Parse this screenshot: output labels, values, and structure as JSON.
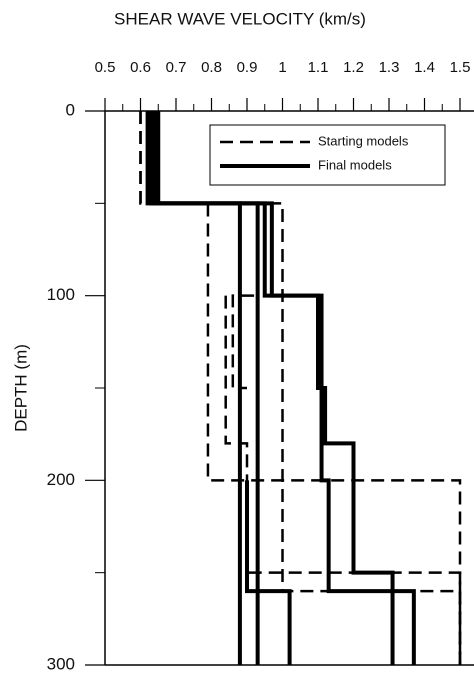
{
  "chart_data": {
    "type": "step-profile",
    "xlabel": "SHEAR WAVE VELOCITY (km/s)",
    "ylabel": "DEPTH (m)",
    "xlim": [
      0.5,
      1.5
    ],
    "xticks": [
      0.5,
      0.6,
      0.7,
      0.8,
      0.9,
      1,
      1.1,
      1.2,
      1.3,
      1.4,
      1.5
    ],
    "ylim": [
      0,
      300
    ],
    "yticks": [
      0,
      100,
      200,
      300
    ],
    "yticks_minor": [
      50,
      150,
      250
    ],
    "y_inverted": true,
    "x_axis_top": true,
    "legend": "upper right",
    "series": [
      {
        "name": "Starting models",
        "style": "dashed",
        "color": "#000000",
        "x": [
          0.6,
          0.6,
          1.0,
          1.0,
          1.5,
          1.5
        ],
        "y": [
          0,
          50,
          50,
          260,
          260,
          300
        ]
      },
      {
        "style": "dashed",
        "color": "#000000",
        "x": [
          0.6,
          0.6,
          0.79,
          0.79,
          1.5,
          1.5
        ],
        "y": [
          0,
          50,
          50,
          200,
          200,
          300
        ]
      },
      {
        "style": "dashed",
        "color": "#000000",
        "x": [
          0.84,
          0.84,
          0.9,
          0.9,
          1.5,
          1.5
        ],
        "y": [
          100,
          180,
          180,
          250,
          250,
          300
        ]
      },
      {
        "style": "dashed",
        "color": "#000000",
        "x": [
          0.92,
          0.86,
          0.86,
          0.9
        ],
        "y": [
          100,
          100,
          150,
          150
        ]
      },
      {
        "name": "Final models",
        "style": "solid",
        "color": "#000000",
        "x": [
          0.63,
          0.63,
          0.88,
          0.88
        ],
        "y": [
          0,
          50,
          50,
          300
        ]
      },
      {
        "style": "solid",
        "color": "#000000",
        "x": [
          0.64,
          0.64,
          0.93,
          0.93
        ],
        "y": [
          0,
          50,
          50,
          300
        ]
      },
      {
        "style": "solid",
        "color": "#000000",
        "x": [
          0.65,
          0.65,
          0.97,
          0.97,
          1.1,
          1.1,
          1.12,
          1.12,
          1.2,
          1.2,
          1.31,
          1.31
        ],
        "y": [
          0,
          50,
          50,
          100,
          100,
          150,
          150,
          180,
          180,
          250,
          250,
          300
        ]
      },
      {
        "style": "solid",
        "color": "#000000",
        "x": [
          0.62,
          0.62,
          0.95,
          0.95,
          1.11,
          1.11,
          1.13,
          1.13,
          1.37,
          1.37
        ],
        "y": [
          0,
          50,
          50,
          100,
          100,
          200,
          200,
          260,
          260,
          300
        ]
      },
      {
        "style": "solid",
        "color": "#000000",
        "x": [
          0.9,
          0.9,
          1.02,
          1.02
        ],
        "y": [
          200,
          260,
          260,
          300
        ]
      }
    ]
  }
}
